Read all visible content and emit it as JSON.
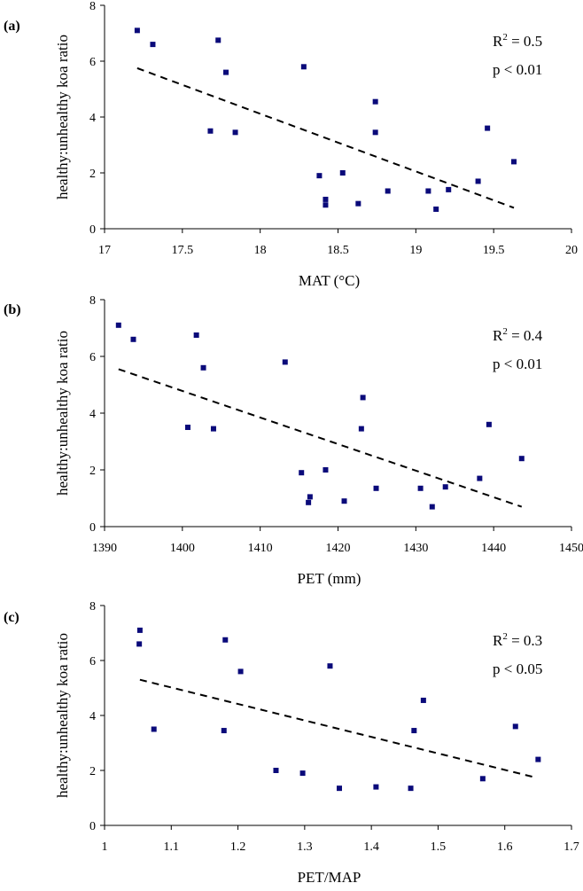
{
  "chart_data": [
    {
      "type": "scatter",
      "panel_label": "(a)",
      "xlabel": "MAT (°C)",
      "ylabel": "healthy:unhealthy koa ratio",
      "xlim": [
        17,
        20
      ],
      "ylim": [
        0,
        8
      ],
      "x_ticks": [
        "17",
        "17.5",
        "18",
        "18.5",
        "19",
        "19.5",
        "20"
      ],
      "x_tick_values": [
        17,
        17.5,
        18,
        18.5,
        19,
        19.5,
        20
      ],
      "y_ticks": [
        "0",
        "2",
        "4",
        "6",
        "8"
      ],
      "y_tick_values": [
        0,
        2,
        4,
        6,
        8
      ],
      "stat_r2_base": "R",
      "stat_r2_sup": "2",
      "stat_r2_rest": " = 0.5",
      "stat_p": "p < 0.01",
      "points": [
        [
          17.21,
          7.1
        ],
        [
          17.31,
          6.6
        ],
        [
          17.73,
          6.75
        ],
        [
          17.78,
          5.6
        ],
        [
          17.68,
          3.5
        ],
        [
          17.84,
          3.45
        ],
        [
          18.28,
          5.8
        ],
        [
          18.38,
          1.9
        ],
        [
          18.42,
          1.05
        ],
        [
          18.42,
          0.85
        ],
        [
          18.53,
          2.0
        ],
        [
          18.63,
          0.9
        ],
        [
          18.74,
          4.55
        ],
        [
          18.74,
          3.45
        ],
        [
          18.82,
          1.35
        ],
        [
          19.08,
          1.35
        ],
        [
          19.13,
          0.7
        ],
        [
          19.21,
          1.4
        ],
        [
          19.4,
          1.7
        ],
        [
          19.46,
          3.6
        ],
        [
          19.63,
          2.4
        ]
      ],
      "trendline": [
        [
          17.21,
          5.75
        ],
        [
          19.63,
          0.75
        ]
      ]
    },
    {
      "type": "scatter",
      "panel_label": "(b)",
      "xlabel": "PET (mm)",
      "ylabel": "healthy:unhealthy koa ratio",
      "xlim": [
        1390,
        1450
      ],
      "ylim": [
        0,
        8
      ],
      "x_ticks": [
        "1390",
        "1400",
        "1410",
        "1420",
        "1430",
        "1440",
        "1450"
      ],
      "x_tick_values": [
        1390,
        1400,
        1410,
        1420,
        1430,
        1440,
        1450
      ],
      "y_ticks": [
        "0",
        "2",
        "4",
        "6",
        "8"
      ],
      "y_tick_values": [
        0,
        2,
        4,
        6,
        8
      ],
      "stat_r2_base": "R",
      "stat_r2_sup": "2",
      "stat_r2_rest": " = 0.4",
      "stat_p": "p < 0.01",
      "points": [
        [
          1391.8,
          7.1
        ],
        [
          1393.7,
          6.6
        ],
        [
          1401.8,
          6.75
        ],
        [
          1402.7,
          5.6
        ],
        [
          1400.7,
          3.5
        ],
        [
          1404.0,
          3.45
        ],
        [
          1413.2,
          5.8
        ],
        [
          1415.3,
          1.9
        ],
        [
          1416.4,
          1.05
        ],
        [
          1416.2,
          0.85
        ],
        [
          1418.4,
          2.0
        ],
        [
          1420.8,
          0.9
        ],
        [
          1423.2,
          4.55
        ],
        [
          1423.0,
          3.45
        ],
        [
          1424.9,
          1.35
        ],
        [
          1430.6,
          1.35
        ],
        [
          1432.1,
          0.7
        ],
        [
          1433.8,
          1.4
        ],
        [
          1438.2,
          1.7
        ],
        [
          1439.4,
          3.6
        ],
        [
          1443.6,
          2.4
        ]
      ],
      "trendline": [
        [
          1391.8,
          5.55
        ],
        [
          1443.6,
          0.7
        ]
      ]
    },
    {
      "type": "scatter",
      "panel_label": "(c)",
      "xlabel": "PET/MAP",
      "ylabel": "healthy:unhealthy koa ratio",
      "xlim": [
        1,
        1.7
      ],
      "ylim": [
        0,
        8
      ],
      "x_ticks": [
        "1",
        "1.1",
        "1.2",
        "1.3",
        "1.4",
        "1.5",
        "1.6",
        "1.7"
      ],
      "x_tick_values": [
        1,
        1.1,
        1.2,
        1.3,
        1.4,
        1.5,
        1.6,
        1.7
      ],
      "y_ticks": [
        "0",
        "2",
        "4",
        "6",
        "8"
      ],
      "y_tick_values": [
        0,
        2,
        4,
        6,
        8
      ],
      "stat_r2_base": "R",
      "stat_r2_sup": "2",
      "stat_r2_rest": " = 0.3",
      "stat_p": "p < 0.05",
      "points": [
        [
          1.053,
          7.1
        ],
        [
          1.052,
          6.6
        ],
        [
          1.074,
          3.5
        ],
        [
          1.181,
          6.75
        ],
        [
          1.204,
          5.6
        ],
        [
          1.179,
          3.45
        ],
        [
          1.257,
          2.0
        ],
        [
          1.297,
          1.9
        ],
        [
          1.338,
          5.8
        ],
        [
          1.352,
          1.35
        ],
        [
          1.407,
          1.4
        ],
        [
          1.459,
          1.35
        ],
        [
          1.464,
          3.45
        ],
        [
          1.478,
          4.55
        ],
        [
          1.567,
          1.7
        ],
        [
          1.616,
          3.6
        ],
        [
          1.65,
          2.4
        ]
      ],
      "trendline": [
        [
          1.053,
          5.3
        ],
        [
          1.645,
          1.75
        ]
      ]
    }
  ]
}
